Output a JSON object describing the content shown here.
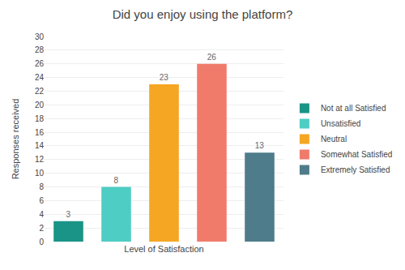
{
  "chart_data": {
    "type": "bar",
    "title": "Did you enjoy using the platform?",
    "xlabel": "Level of Satisfaction",
    "ylabel": "Responses received",
    "categories": [
      "Not at all Satisfied",
      "Unsatisfied",
      "Neutral",
      "Somewhat Satisfied",
      "Extremely Satisfied"
    ],
    "values": [
      3,
      8,
      23,
      26,
      13
    ],
    "colors": [
      "#1A9486",
      "#4ECDC4",
      "#F5A623",
      "#F07B6B",
      "#4F7C8A"
    ],
    "ylim": [
      0,
      30
    ],
    "yticks": [
      0,
      2,
      4,
      6,
      8,
      10,
      12,
      14,
      16,
      18,
      20,
      22,
      24,
      26,
      28,
      30
    ],
    "grid": true,
    "data_labels": true,
    "tick_labels": "y",
    "legend": "right"
  }
}
